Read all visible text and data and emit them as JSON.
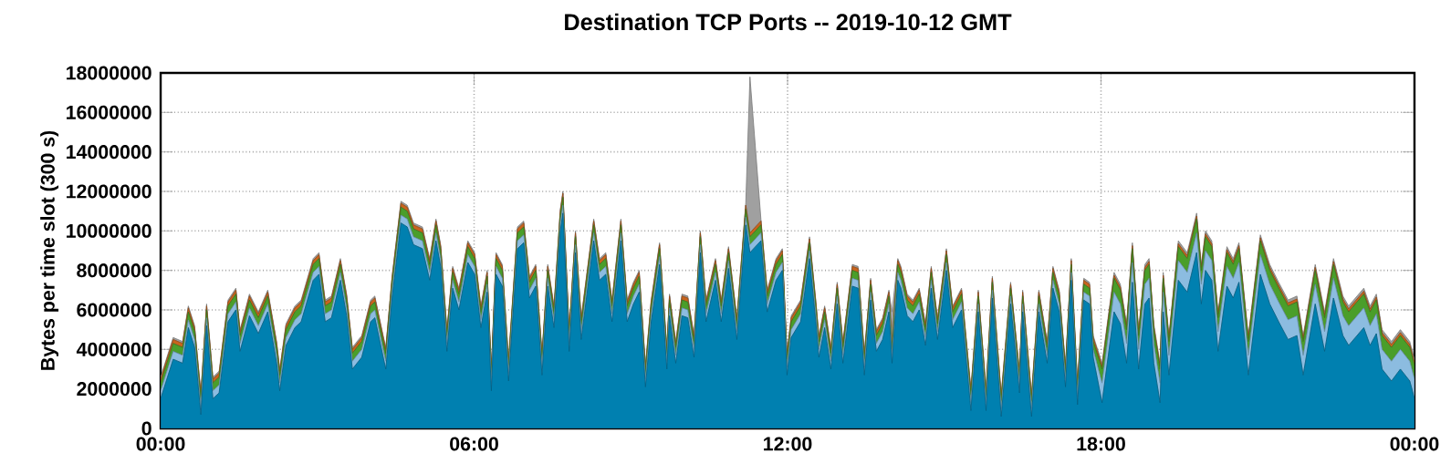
{
  "chart_data": {
    "type": "area",
    "stacked": true,
    "title": "Destination TCP Ports -- 2019-10-12 GMT",
    "ylabel": "Bytes per time slot (300 s)",
    "x": [
      0,
      0.24,
      0.42,
      0.53,
      0.65,
      0.77,
      0.88,
      1.0,
      1.12,
      1.29,
      1.44,
      1.52,
      1.7,
      1.87,
      2.05,
      2.22,
      2.28,
      2.4,
      2.57,
      2.69,
      2.92,
      3.03,
      3.15,
      3.27,
      3.44,
      3.56,
      3.67,
      3.85,
      4.02,
      4.1,
      4.26,
      4.31,
      4.43,
      4.6,
      4.72,
      4.84,
      5.01,
      5.15,
      5.27,
      5.36,
      5.48,
      5.59,
      5.71,
      5.88,
      6.01,
      6.13,
      6.25,
      6.33,
      6.42,
      6.54,
      6.66,
      6.83,
      6.95,
      7.06,
      7.18,
      7.3,
      7.41,
      7.53,
      7.65,
      7.7,
      7.82,
      7.94,
      8.05,
      8.29,
      8.4,
      8.52,
      8.64,
      8.81,
      8.93,
      9.05,
      9.16,
      9.28,
      9.39,
      9.55,
      9.69,
      9.74,
      9.86,
      9.98,
      10.09,
      10.21,
      10.33,
      10.44,
      10.62,
      10.73,
      10.87,
      11.03,
      11.2,
      11.28,
      11.49,
      11.61,
      11.78,
      11.9,
      11.99,
      12.07,
      12.25,
      12.42,
      12.54,
      12.6,
      12.71,
      12.83,
      12.95,
      13.06,
      13.24,
      13.35,
      13.47,
      13.59,
      13.7,
      13.82,
      13.94,
      14.0,
      14.11,
      14.17,
      14.29,
      14.4,
      14.52,
      14.64,
      14.75,
      14.87,
      15.04,
      15.16,
      15.33,
      15.51,
      15.65,
      15.8,
      15.92,
      16.09,
      16.27,
      16.44,
      16.5,
      16.67,
      16.81,
      16.97,
      17.08,
      17.2,
      17.32,
      17.43,
      17.55,
      17.67,
      17.78,
      17.85,
      18.02,
      18.25,
      18.37,
      18.49,
      18.6,
      18.72,
      18.84,
      18.92,
      19.01,
      19.13,
      19.19,
      19.3,
      19.48,
      19.65,
      19.83,
      19.92,
      20.0,
      20.12,
      20.24,
      20.41,
      20.53,
      20.64,
      20.82,
      21.05,
      21.23,
      21.4,
      21.58,
      21.75,
      21.87,
      22.1,
      22.28,
      22.45,
      22.63,
      22.74,
      23.03,
      23.15,
      23.27,
      23.38,
      23.56,
      23.73,
      23.91,
      24
    ],
    "series": [
      {
        "color": "#0080b0",
        "values": [
          1500000,
          3500000,
          3300000,
          5100000,
          4100000,
          700000,
          5200000,
          1500000,
          1800000,
          5400000,
          6000000,
          3900000,
          5700000,
          4800000,
          5900000,
          3300000,
          1900000,
          4200000,
          5100000,
          5400000,
          7500000,
          7800000,
          5400000,
          5600000,
          7500000,
          5700000,
          3000000,
          3600000,
          5400000,
          5600000,
          3600000,
          3000000,
          6600000,
          10400000,
          10200000,
          9300000,
          9100000,
          7500000,
          9500000,
          8200000,
          3900000,
          7100000,
          6000000,
          8400000,
          7800000,
          5100000,
          6900000,
          1900000,
          7800000,
          7200000,
          2400000,
          9100000,
          9400000,
          6600000,
          7200000,
          2700000,
          7200000,
          5100000,
          10000000,
          10900000,
          3900000,
          8900000,
          4500000,
          9500000,
          7500000,
          7800000,
          5400000,
          9500000,
          5400000,
          6300000,
          6900000,
          2100000,
          5400000,
          8300000,
          3000000,
          5700000,
          3300000,
          5700000,
          5600000,
          3600000,
          8900000,
          5400000,
          7500000,
          5400000,
          8100000,
          4500000,
          10300000,
          8900000,
          9500000,
          5900000,
          7500000,
          8000000,
          2700000,
          4600000,
          5400000,
          8600000,
          5400000,
          3600000,
          5100000,
          3000000,
          6300000,
          3300000,
          7200000,
          7100000,
          2700000,
          6500000,
          3900000,
          4500000,
          5900000,
          3300000,
          7500000,
          7100000,
          5700000,
          5400000,
          6000000,
          4200000,
          7100000,
          4500000,
          8000000,
          5100000,
          6000000,
          900000,
          5900000,
          900000,
          6600000,
          600000,
          6300000,
          1800000,
          5900000,
          600000,
          5900000,
          3300000,
          7100000,
          5900000,
          2100000,
          7500000,
          1200000,
          6500000,
          6300000,
          3600000,
          1300000,
          5900000,
          5300000,
          3300000,
          7400000,
          3000000,
          6300000,
          6600000,
          3300000,
          1300000,
          5900000,
          2700000,
          7500000,
          6900000,
          8900000,
          6300000,
          8000000,
          7500000,
          3900000,
          7200000,
          6600000,
          7400000,
          2700000,
          7800000,
          6300000,
          5400000,
          4500000,
          4700000,
          2700000,
          6300000,
          3900000,
          6600000,
          4700000,
          4200000,
          5100000,
          4200000,
          4800000,
          3000000,
          2400000,
          3000000,
          2400000,
          1500000
        ]
      },
      {
        "color": "#8cbce0",
        "values": [
          400000,
          400000,
          400000,
          400000,
          400000,
          400000,
          400000,
          400000,
          400000,
          400000,
          400000,
          400000,
          400000,
          400000,
          400000,
          400000,
          400000,
          400000,
          400000,
          400000,
          400000,
          400000,
          400000,
          400000,
          400000,
          400000,
          400000,
          400000,
          400000,
          400000,
          400000,
          400000,
          400000,
          400000,
          400000,
          400000,
          400000,
          400000,
          400000,
          400000,
          400000,
          400000,
          400000,
          400000,
          400000,
          400000,
          400000,
          400000,
          400000,
          400000,
          400000,
          400000,
          400000,
          400000,
          400000,
          400000,
          400000,
          400000,
          400000,
          400000,
          400000,
          400000,
          400000,
          400000,
          400000,
          400000,
          400000,
          400000,
          400000,
          400000,
          400000,
          400000,
          400000,
          400000,
          400000,
          400000,
          400000,
          400000,
          400000,
          400000,
          400000,
          400000,
          400000,
          400000,
          400000,
          400000,
          400000,
          400000,
          400000,
          400000,
          400000,
          400000,
          400000,
          400000,
          400000,
          400000,
          400000,
          400000,
          400000,
          400000,
          400000,
          400000,
          400000,
          400000,
          400000,
          400000,
          400000,
          400000,
          400000,
          400000,
          400000,
          400000,
          400000,
          400000,
          400000,
          400000,
          400000,
          400000,
          400000,
          400000,
          400000,
          400000,
          400000,
          400000,
          400000,
          400000,
          400000,
          400000,
          400000,
          400000,
          400000,
          400000,
          400000,
          400000,
          400000,
          400000,
          400000,
          400000,
          400000,
          400000,
          1000000,
          1000000,
          1000000,
          1000000,
          1000000,
          1000000,
          1000000,
          1000000,
          1000000,
          1000000,
          1000000,
          1000000,
          1000000,
          1000000,
          1000000,
          1000000,
          1000000,
          1000000,
          1000000,
          1000000,
          1000000,
          1000000,
          1000000,
          1000000,
          1000000,
          1000000,
          1000000,
          1000000,
          1000000,
          1000000,
          1000000,
          1000000,
          1000000,
          1000000,
          1000000,
          1000000,
          1000000,
          1000000,
          1000000,
          1000000,
          1000000,
          1000000
        ]
      },
      {
        "color": "#4a9e2a",
        "values": [
          400000,
          400000,
          400000,
          400000,
          400000,
          400000,
          400000,
          400000,
          400000,
          400000,
          400000,
          400000,
          400000,
          400000,
          400000,
          400000,
          400000,
          400000,
          400000,
          400000,
          400000,
          400000,
          400000,
          400000,
          400000,
          400000,
          400000,
          400000,
          400000,
          400000,
          400000,
          400000,
          400000,
          400000,
          400000,
          400000,
          400000,
          400000,
          400000,
          400000,
          400000,
          400000,
          400000,
          400000,
          400000,
          400000,
          400000,
          400000,
          400000,
          400000,
          400000,
          400000,
          400000,
          400000,
          400000,
          400000,
          400000,
          400000,
          400000,
          400000,
          400000,
          400000,
          400000,
          400000,
          400000,
          400000,
          400000,
          400000,
          400000,
          400000,
          400000,
          400000,
          400000,
          400000,
          400000,
          400000,
          400000,
          400000,
          400000,
          400000,
          400000,
          400000,
          400000,
          400000,
          400000,
          400000,
          400000,
          400000,
          400000,
          400000,
          400000,
          400000,
          400000,
          400000,
          400000,
          400000,
          400000,
          400000,
          400000,
          400000,
          400000,
          400000,
          400000,
          400000,
          400000,
          400000,
          400000,
          400000,
          400000,
          400000,
          400000,
          400000,
          400000,
          400000,
          400000,
          400000,
          400000,
          400000,
          400000,
          400000,
          400000,
          400000,
          400000,
          400000,
          400000,
          400000,
          400000,
          400000,
          400000,
          400000,
          400000,
          400000,
          400000,
          400000,
          400000,
          400000,
          400000,
          400000,
          400000,
          400000,
          700000,
          700000,
          700000,
          700000,
          700000,
          700000,
          700000,
          700000,
          700000,
          700000,
          700000,
          700000,
          700000,
          700000,
          700000,
          700000,
          700000,
          700000,
          700000,
          700000,
          700000,
          700000,
          700000,
          700000,
          700000,
          700000,
          700000,
          700000,
          700000,
          700000,
          700000,
          700000,
          700000,
          700000,
          700000,
          700000,
          700000,
          700000,
          700000,
          700000,
          700000,
          700000
        ]
      },
      {
        "color": "#c8641e",
        "values": [
          200000,
          200000,
          200000,
          200000,
          200000,
          200000,
          200000,
          200000,
          200000,
          200000,
          200000,
          200000,
          200000,
          200000,
          200000,
          200000,
          200000,
          200000,
          200000,
          200000,
          200000,
          200000,
          200000,
          200000,
          200000,
          200000,
          200000,
          200000,
          200000,
          200000,
          200000,
          200000,
          200000,
          200000,
          200000,
          200000,
          200000,
          200000,
          200000,
          200000,
          200000,
          200000,
          200000,
          200000,
          200000,
          200000,
          200000,
          200000,
          200000,
          200000,
          200000,
          200000,
          200000,
          200000,
          200000,
          200000,
          200000,
          200000,
          200000,
          200000,
          200000,
          200000,
          200000,
          200000,
          200000,
          200000,
          200000,
          200000,
          200000,
          200000,
          200000,
          200000,
          200000,
          200000,
          200000,
          200000,
          200000,
          200000,
          200000,
          200000,
          200000,
          200000,
          200000,
          200000,
          200000,
          200000,
          200000,
          200000,
          200000,
          200000,
          200000,
          200000,
          200000,
          200000,
          200000,
          200000,
          200000,
          200000,
          200000,
          200000,
          200000,
          200000,
          200000,
          200000,
          200000,
          200000,
          200000,
          200000,
          200000,
          200000,
          200000,
          200000,
          200000,
          200000,
          200000,
          200000,
          200000,
          200000,
          200000,
          200000,
          200000,
          200000,
          200000,
          200000,
          200000,
          200000,
          200000,
          200000,
          200000,
          200000,
          200000,
          200000,
          200000,
          200000,
          200000,
          200000,
          200000,
          200000,
          200000,
          200000,
          150000,
          150000,
          150000,
          150000,
          150000,
          150000,
          150000,
          150000,
          150000,
          150000,
          150000,
          150000,
          150000,
          150000,
          150000,
          150000,
          150000,
          150000,
          150000,
          150000,
          150000,
          150000,
          150000,
          150000,
          150000,
          150000,
          150000,
          150000,
          150000,
          150000,
          150000,
          150000,
          150000,
          150000,
          150000,
          150000,
          150000,
          150000,
          150000,
          150000,
          150000,
          150000
        ]
      },
      {
        "color": "#a0a0a0",
        "values": [
          100000,
          100000,
          100000,
          100000,
          100000,
          100000,
          100000,
          100000,
          100000,
          100000,
          100000,
          100000,
          100000,
          100000,
          100000,
          100000,
          100000,
          100000,
          100000,
          100000,
          100000,
          100000,
          100000,
          100000,
          100000,
          100000,
          100000,
          100000,
          100000,
          100000,
          100000,
          100000,
          100000,
          100000,
          100000,
          100000,
          100000,
          100000,
          100000,
          100000,
          100000,
          100000,
          100000,
          100000,
          100000,
          100000,
          100000,
          100000,
          100000,
          100000,
          100000,
          100000,
          100000,
          100000,
          100000,
          100000,
          100000,
          100000,
          100000,
          100000,
          100000,
          100000,
          100000,
          100000,
          100000,
          100000,
          100000,
          100000,
          100000,
          100000,
          100000,
          100000,
          100000,
          100000,
          100000,
          100000,
          100000,
          100000,
          100000,
          100000,
          100000,
          100000,
          100000,
          100000,
          100000,
          100000,
          100000,
          7900000,
          100000,
          100000,
          100000,
          100000,
          100000,
          100000,
          100000,
          100000,
          100000,
          100000,
          100000,
          100000,
          100000,
          100000,
          100000,
          100000,
          100000,
          100000,
          100000,
          100000,
          100000,
          1600000,
          100000,
          100000,
          100000,
          100000,
          100000,
          100000,
          100000,
          100000,
          100000,
          100000,
          100000,
          100000,
          100000,
          100000,
          100000,
          100000,
          100000,
          100000,
          100000,
          100000,
          100000,
          100000,
          100000,
          100000,
          100000,
          100000,
          100000,
          100000,
          100000,
          100000,
          150000,
          150000,
          150000,
          150000,
          150000,
          150000,
          150000,
          150000,
          150000,
          150000,
          150000,
          150000,
          150000,
          150000,
          150000,
          150000,
          150000,
          150000,
          150000,
          150000,
          150000,
          150000,
          150000,
          150000,
          150000,
          150000,
          150000,
          150000,
          150000,
          150000,
          150000,
          150000,
          150000,
          150000,
          150000,
          150000,
          150000,
          150000,
          150000,
          150000,
          150000,
          150000
        ]
      }
    ],
    "xlim": [
      0,
      24
    ],
    "xticks": [
      {
        "value": 0,
        "label": "00:00"
      },
      {
        "value": 6,
        "label": "06:00"
      },
      {
        "value": 12,
        "label": "12:00"
      },
      {
        "value": 18,
        "label": "18:00"
      },
      {
        "value": 24,
        "label": "00:00"
      }
    ],
    "ylim": [
      0,
      18000000
    ],
    "yticks": [
      0,
      2000000,
      4000000,
      6000000,
      8000000,
      10000000,
      12000000,
      14000000,
      16000000,
      18000000
    ],
    "grid": true
  }
}
